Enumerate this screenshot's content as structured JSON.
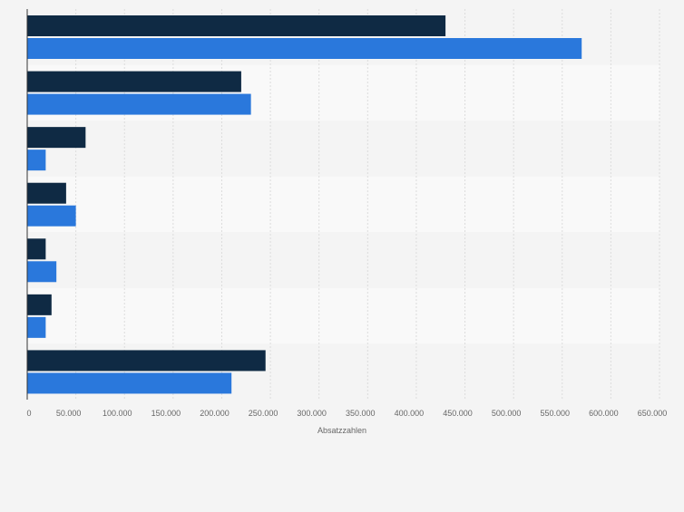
{
  "chart_data": {
    "type": "bar",
    "orientation": "horizontal",
    "title": "",
    "xlabel": "Absatzzahlen",
    "ylabel": "",
    "xlim": [
      0,
      650000
    ],
    "x_ticks": [
      0,
      50000,
      100000,
      150000,
      200000,
      250000,
      300000,
      350000,
      400000,
      450000,
      500000,
      550000,
      600000,
      650000
    ],
    "x_tick_labels": [
      "0",
      "50.000",
      "100.000",
      "150.000",
      "200.000",
      "250.000",
      "300.000",
      "350.000",
      "400.000",
      "450.000",
      "500.000",
      "550.000",
      "600.000",
      "650.000"
    ],
    "categories": [
      "",
      "",
      "",
      "",
      "",
      "",
      ""
    ],
    "series": [
      {
        "name": "",
        "color": "#0f2a44",
        "values": [
          430000,
          220000,
          60000,
          40000,
          19000,
          25000,
          245000
        ]
      },
      {
        "name": "",
        "color": "#2a78dc",
        "values": [
          570000,
          230000,
          19000,
          50000,
          30000,
          19000,
          210000
        ]
      }
    ],
    "grid": true,
    "legend": "none"
  }
}
